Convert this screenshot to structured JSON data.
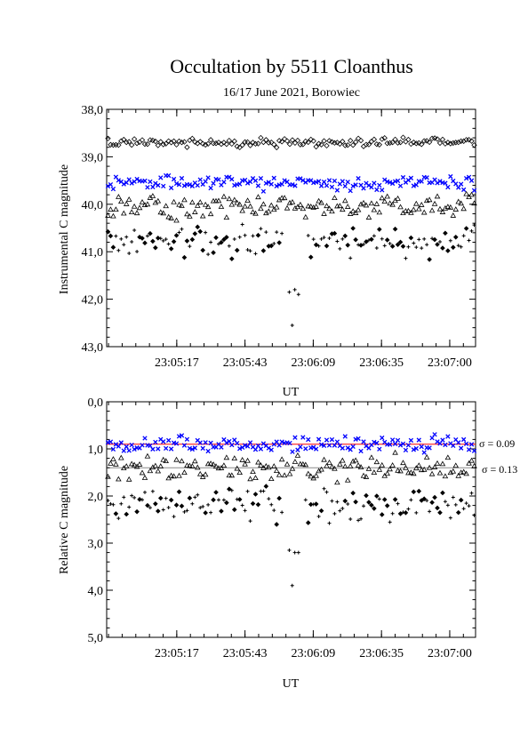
{
  "title": "Occultation by 5511 Cloanthus",
  "subtitle": "16/17 June 2021, Borowiec",
  "colors": {
    "blue": "#0000ff",
    "black": "#000000",
    "red": "#ff0000"
  },
  "chart_data": [
    {
      "type": "scatter",
      "ylabel": "Instrumental C magnitude",
      "xlabel": "UT",
      "ylim": [
        38.0,
        43.0
      ],
      "y_inverted": true,
      "yticks": [
        "38,0",
        "39,0",
        "40,0",
        "41,0",
        "42,0",
        "43,0"
      ],
      "xticks": [
        "23:05:17",
        "23:05:43",
        "23:06:09",
        "23:06:35",
        "23:07:00"
      ],
      "series": [
        {
          "marker": "diamond-open",
          "color": "#000000",
          "level": 38.7,
          "scatter": 0.05
        },
        {
          "marker": "cross",
          "color": "#0000ff",
          "level": 39.55,
          "scatter": 0.08
        },
        {
          "marker": "triangle-open",
          "color": "#000000",
          "level": 40.05,
          "scatter": 0.13
        },
        {
          "marker": "mixed",
          "color": "#000000",
          "level": 40.8,
          "scatter": 0.18,
          "dip_points": [
            [
              0.495,
              41.85
            ],
            [
              0.51,
              41.8
            ],
            [
              0.52,
              41.9
            ],
            [
              0.503,
              42.55
            ]
          ]
        }
      ]
    },
    {
      "type": "scatter",
      "ylabel": "Relative C magnitude",
      "xlabel": "UT",
      "ylim": [
        0.0,
        5.0
      ],
      "y_inverted": true,
      "yticks": [
        "0,0",
        "1,0",
        "2,0",
        "3,0",
        "4,0",
        "5,0"
      ],
      "xticks": [
        "23:05:17",
        "23:05:43",
        "23:06:09",
        "23:06:35",
        "23:07:00"
      ],
      "series": [
        {
          "marker": "cross",
          "color": "#0000ff",
          "level": 0.9,
          "scatter": 0.08,
          "fit_line": 0.9,
          "line_color": "#ff0000"
        },
        {
          "marker": "triangle-open",
          "color": "#000000",
          "level": 1.4,
          "scatter": 0.13,
          "fit_line": 1.4,
          "line_color": "#888888"
        },
        {
          "marker": "mixed",
          "color": "#000000",
          "level": 2.2,
          "scatter": 0.18,
          "dip_points": [
            [
              0.495,
              3.15
            ],
            [
              0.51,
              3.2
            ],
            [
              0.52,
              3.2
            ],
            [
              0.503,
              3.9
            ]
          ]
        }
      ],
      "annotations": [
        "σ = 0.09",
        "σ = 0.13"
      ]
    }
  ]
}
